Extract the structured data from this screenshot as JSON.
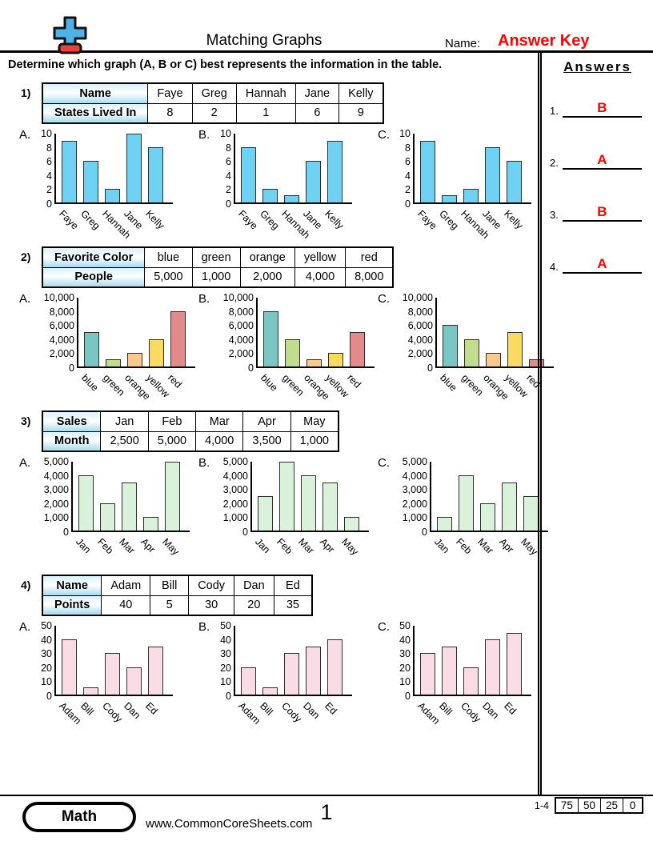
{
  "header": {
    "title": "Matching Graphs",
    "name_label": "Name:",
    "name_value": "Answer Key",
    "instruction": "Determine which graph (A, B or C) best represents the information in the table.",
    "answers_title": "Answers"
  },
  "answers": [
    {
      "num": "1.",
      "value": "B"
    },
    {
      "num": "2.",
      "value": "A"
    },
    {
      "num": "3.",
      "value": "B"
    },
    {
      "num": "4.",
      "value": "A"
    }
  ],
  "colors": {
    "answer_red": "#ff0000",
    "bar_border": "#2e2e2e",
    "table_header_blue": "#a6dcee"
  },
  "problems": [
    {
      "num": "1)",
      "table": {
        "row1": [
          "Name",
          "Faye",
          "Greg",
          "Hannah",
          "Jane",
          "Kelly"
        ],
        "row2": [
          "States Lived In",
          "8",
          "2",
          "1",
          "6",
          "9"
        ]
      },
      "chart": {
        "type": "bar",
        "categories": [
          "Faye",
          "Greg",
          "Hannah",
          "Jane",
          "Kelly"
        ],
        "ymax": 10,
        "yticks": [
          "10",
          "8",
          "6",
          "4",
          "2",
          "0"
        ],
        "bar_color": "#6fd2f2",
        "graphs": [
          {
            "label": "A.",
            "values": [
              9,
              6,
              2,
              10,
              8
            ]
          },
          {
            "label": "B.",
            "values": [
              8,
              2,
              1,
              6,
              9
            ]
          },
          {
            "label": "C.",
            "values": [
              9,
              1,
              2,
              8,
              6
            ]
          }
        ]
      }
    },
    {
      "num": "2)",
      "table": {
        "row1": [
          "Favorite Color",
          "blue",
          "green",
          "orange",
          "yellow",
          "red"
        ],
        "row2": [
          "People",
          "5,000",
          "1,000",
          "2,000",
          "4,000",
          "8,000"
        ]
      },
      "chart": {
        "type": "bar",
        "categories": [
          "blue",
          "green",
          "orange",
          "yellow",
          "red"
        ],
        "ymax": 10000,
        "yticks": [
          "10,000",
          "8,000",
          "6,000",
          "4,000",
          "2,000",
          "0"
        ],
        "bar_colors": [
          "#7ac6c4",
          "#c1dc8d",
          "#fac98d",
          "#fada60",
          "#e58a8a"
        ],
        "graphs": [
          {
            "label": "A.",
            "values": [
              5000,
              1000,
              2000,
              4000,
              8000
            ]
          },
          {
            "label": "B.",
            "values": [
              8000,
              4000,
              1000,
              2000,
              5000
            ]
          },
          {
            "label": "C.",
            "values": [
              6000,
              4000,
              2000,
              5000,
              1000
            ]
          }
        ]
      }
    },
    {
      "num": "3)",
      "table": {
        "row1": [
          "Sales",
          "Jan",
          "Feb",
          "Mar",
          "Apr",
          "May"
        ],
        "row2": [
          "Month",
          "2,500",
          "5,000",
          "4,000",
          "3,500",
          "1,000"
        ]
      },
      "chart": {
        "type": "bar",
        "categories": [
          "Jan",
          "Feb",
          "Mar",
          "Apr",
          "May"
        ],
        "ymax": 5000,
        "yticks": [
          "5,000",
          "4,000",
          "3,000",
          "2,000",
          "1,000",
          "0"
        ],
        "bar_color": "#d9f2d9",
        "graphs": [
          {
            "label": "A.",
            "values": [
              4000,
              2000,
              3500,
              1000,
              5000
            ]
          },
          {
            "label": "B.",
            "values": [
              2500,
              5000,
              4000,
              3500,
              1000
            ]
          },
          {
            "label": "C.",
            "values": [
              1000,
              4000,
              2000,
              3500,
              2500
            ]
          }
        ]
      }
    },
    {
      "num": "4)",
      "table": {
        "row1": [
          "Name",
          "Adam",
          "Bill",
          "Cody",
          "Dan",
          "Ed"
        ],
        "row2": [
          "Points",
          "40",
          "5",
          "30",
          "20",
          "35"
        ]
      },
      "chart": {
        "type": "bar",
        "categories": [
          "Adam",
          "Bill",
          "Cody",
          "Dan",
          "Ed"
        ],
        "ymax": 50,
        "yticks": [
          "50",
          "40",
          "30",
          "20",
          "10",
          "0"
        ],
        "bar_color": "#fadce4",
        "graphs": [
          {
            "label": "A.",
            "values": [
              40,
              5,
              30,
              20,
              35
            ]
          },
          {
            "label": "B.",
            "values": [
              20,
              5,
              30,
              35,
              40
            ]
          },
          {
            "label": "C.",
            "values": [
              30,
              35,
              20,
              40,
              45
            ]
          }
        ]
      }
    }
  ],
  "footer": {
    "badge": "Math",
    "site": "www.CommonCoreSheets.com",
    "page": "1",
    "score_label": "1-4",
    "score_values": [
      "75",
      "50",
      "25",
      "0"
    ]
  }
}
